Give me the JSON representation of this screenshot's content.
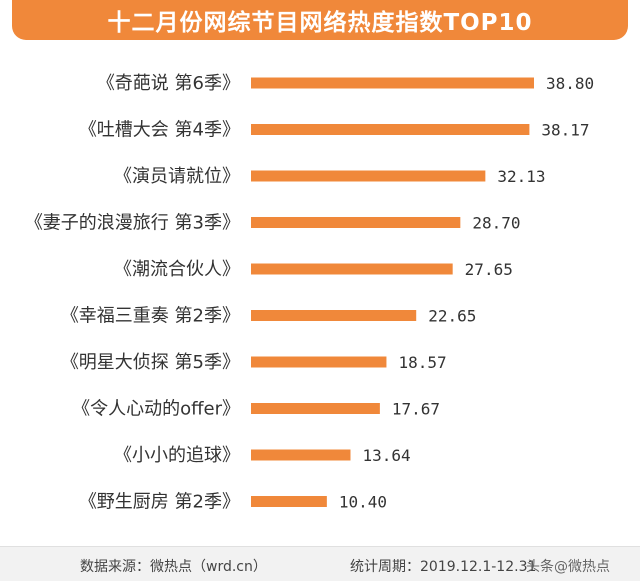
{
  "chart_data": {
    "type": "bar",
    "orientation": "horizontal",
    "title": "十二月份网综节目网络热度指数TOP10",
    "categories": [
      "《奇葩说 第6季》",
      "《吐槽大会 第4季》",
      "《演员请就位》",
      "《妻子的浪漫旅行 第3季》",
      "《潮流合伙人》",
      "《幸福三重奏 第2季》",
      "《明星大侦探 第5季》",
      "《令人心动的offer》",
      "《小小的追球》",
      "《野生厨房 第2季》"
    ],
    "values": [
      38.8,
      38.17,
      32.13,
      28.7,
      27.65,
      22.65,
      18.57,
      17.67,
      13.64,
      10.4
    ],
    "value_labels": [
      "38.80",
      "38.17",
      "32.13",
      "28.70",
      "27.65",
      "22.65",
      "18.57",
      "17.67",
      "13.64",
      "10.40"
    ],
    "xlim": [
      0,
      38.8
    ],
    "grid": false,
    "bar_color": "#f0883a"
  },
  "footer": {
    "source": "数据来源：微热点（wrd.cn）",
    "period": "统计周期：2019.12.1-12.31",
    "watermark": "头条@微热点"
  },
  "colors": {
    "accent": "#f0883a",
    "text": "#333333"
  }
}
